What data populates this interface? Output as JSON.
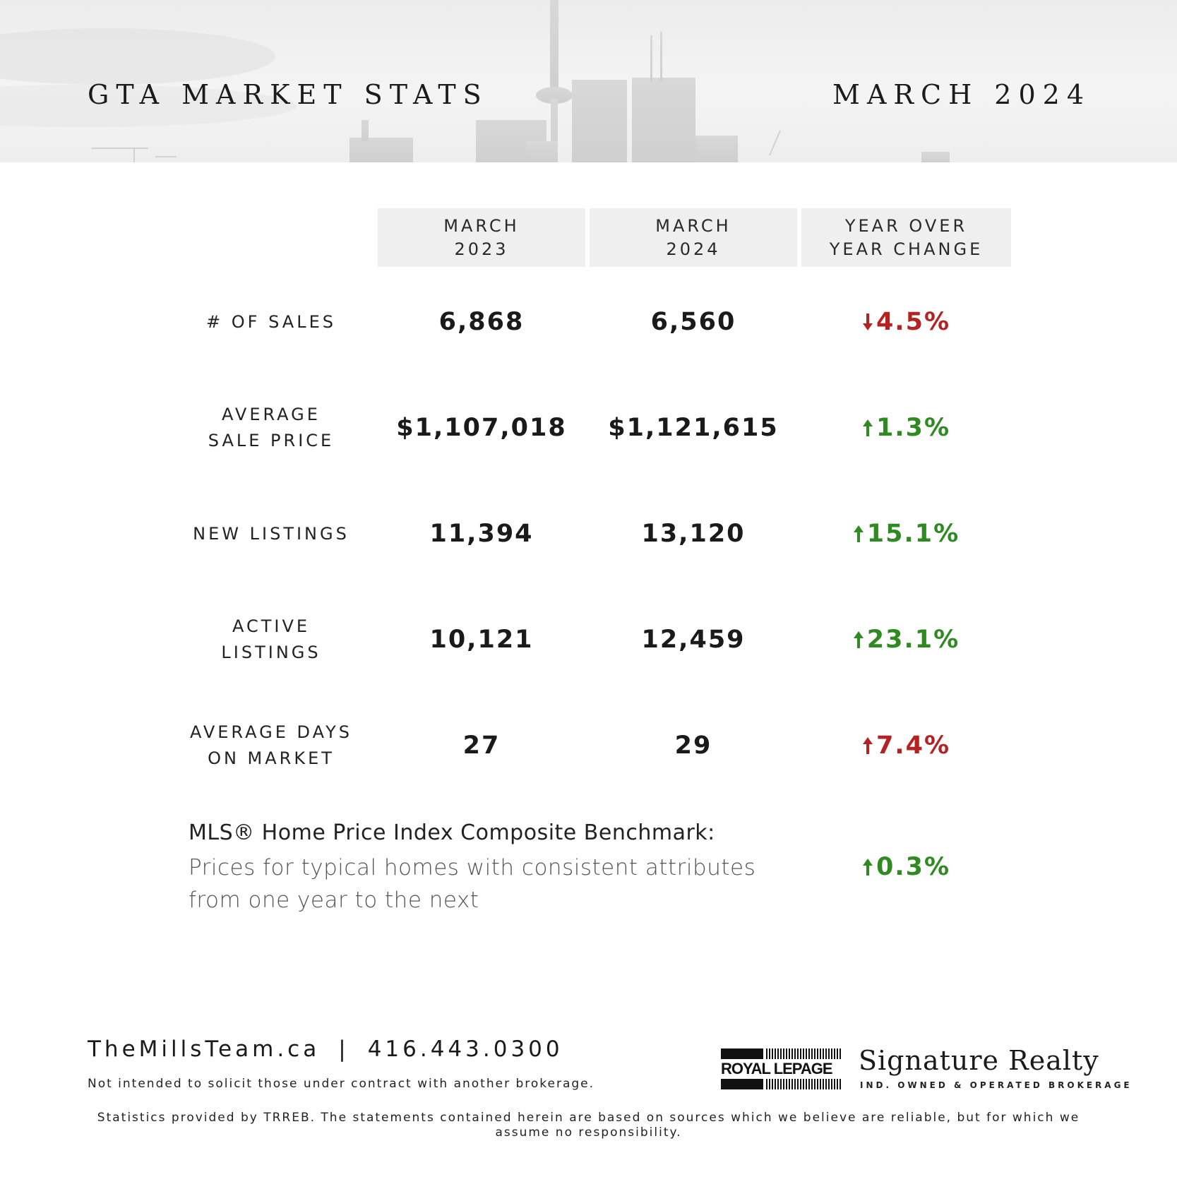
{
  "header": {
    "title": "GTA MARKET STATS",
    "date": "MARCH 2024"
  },
  "columns": [
    "MARCH\n2023",
    "MARCH\n2024",
    "YEAR OVER\nYEAR CHANGE"
  ],
  "rows": [
    {
      "label": "# OF SALES",
      "v2023": "6,868",
      "v2024": "6,560",
      "change": "4.5%",
      "direction": "down",
      "color": "#b52222"
    },
    {
      "label": "AVERAGE\nSALE PRICE",
      "v2023": "$1,107,018",
      "v2024": "$1,121,615",
      "change": "1.3%",
      "direction": "up",
      "color": "#2f8a22"
    },
    {
      "label": "NEW LISTINGS",
      "v2023": "11,394",
      "v2024": "13,120",
      "change": "15.1%",
      "direction": "up",
      "color": "#2f8a22"
    },
    {
      "label": "ACTIVE\nLISTINGS",
      "v2023": "10,121",
      "v2024": "12,459",
      "change": "23.1%",
      "direction": "up",
      "color": "#2f8a22"
    },
    {
      "label": "AVERAGE DAYS\nON MARKET",
      "v2023": "27",
      "v2024": "29",
      "change": "7.4%",
      "direction": "up",
      "color": "#b52222"
    }
  ],
  "hpi": {
    "title": "MLS® Home Price Index Composite Benchmark:",
    "description": "Prices for typical homes with consistent attributes from one year to the next",
    "change": "0.3%",
    "direction": "up",
    "color": "#2f8a22"
  },
  "footer": {
    "website": "TheMillsTeam.ca",
    "separator": "|",
    "phone": "416.443.0300",
    "disclaimer1": "Not intended to solicit those under contract with another brokerage.",
    "disclaimer2": "Statistics provided by TRREB. The statements contained herein are based on sources which we believe are reliable, but for which we assume no responsibility.",
    "logo_text": "ROYAL LEPAGE",
    "brokerage_name": "Signature Realty",
    "brokerage_sub": "IND. OWNED & OPERATED BROKERAGE"
  }
}
